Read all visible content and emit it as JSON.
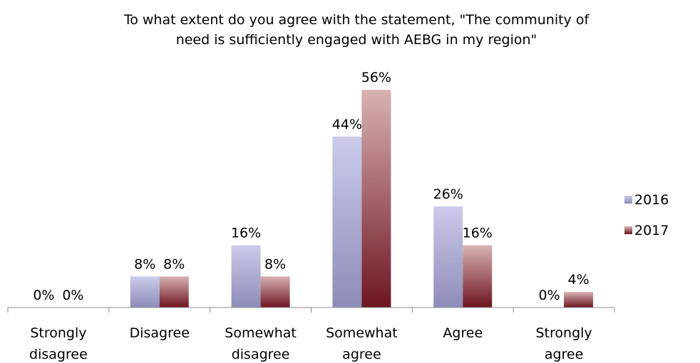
{
  "chart_data": {
    "type": "bar",
    "title_lines": [
      "To what extent do you agree with the statement, \"The community of",
      "need is sufficiently engaged with AEBG in my region\""
    ],
    "categories": [
      [
        "Strongly",
        "disagree"
      ],
      [
        "Disagree"
      ],
      [
        "Somewhat",
        "disagree"
      ],
      [
        "Somewhat",
        "agree"
      ],
      [
        "Agree"
      ],
      [
        "Strongly",
        "agree"
      ]
    ],
    "series": [
      {
        "name": "2016",
        "values": [
          0,
          8,
          16,
          44,
          26,
          0
        ],
        "labels": [
          "0%",
          "8%",
          "16%",
          "44%",
          "26%",
          "0%"
        ],
        "color_top": "#CBCBEC",
        "color_bottom": "#8C8CB8"
      },
      {
        "name": "2017",
        "values": [
          0,
          8,
          8,
          56,
          16,
          4
        ],
        "labels": [
          "0%",
          "8%",
          "8%",
          "56%",
          "16%",
          "4%"
        ],
        "color_top": "#D8B2B2",
        "color_bottom": "#6E1520"
      }
    ],
    "ylim": [
      0,
      60
    ],
    "value_unit": "%",
    "grid": false,
    "legend_position": "right"
  }
}
